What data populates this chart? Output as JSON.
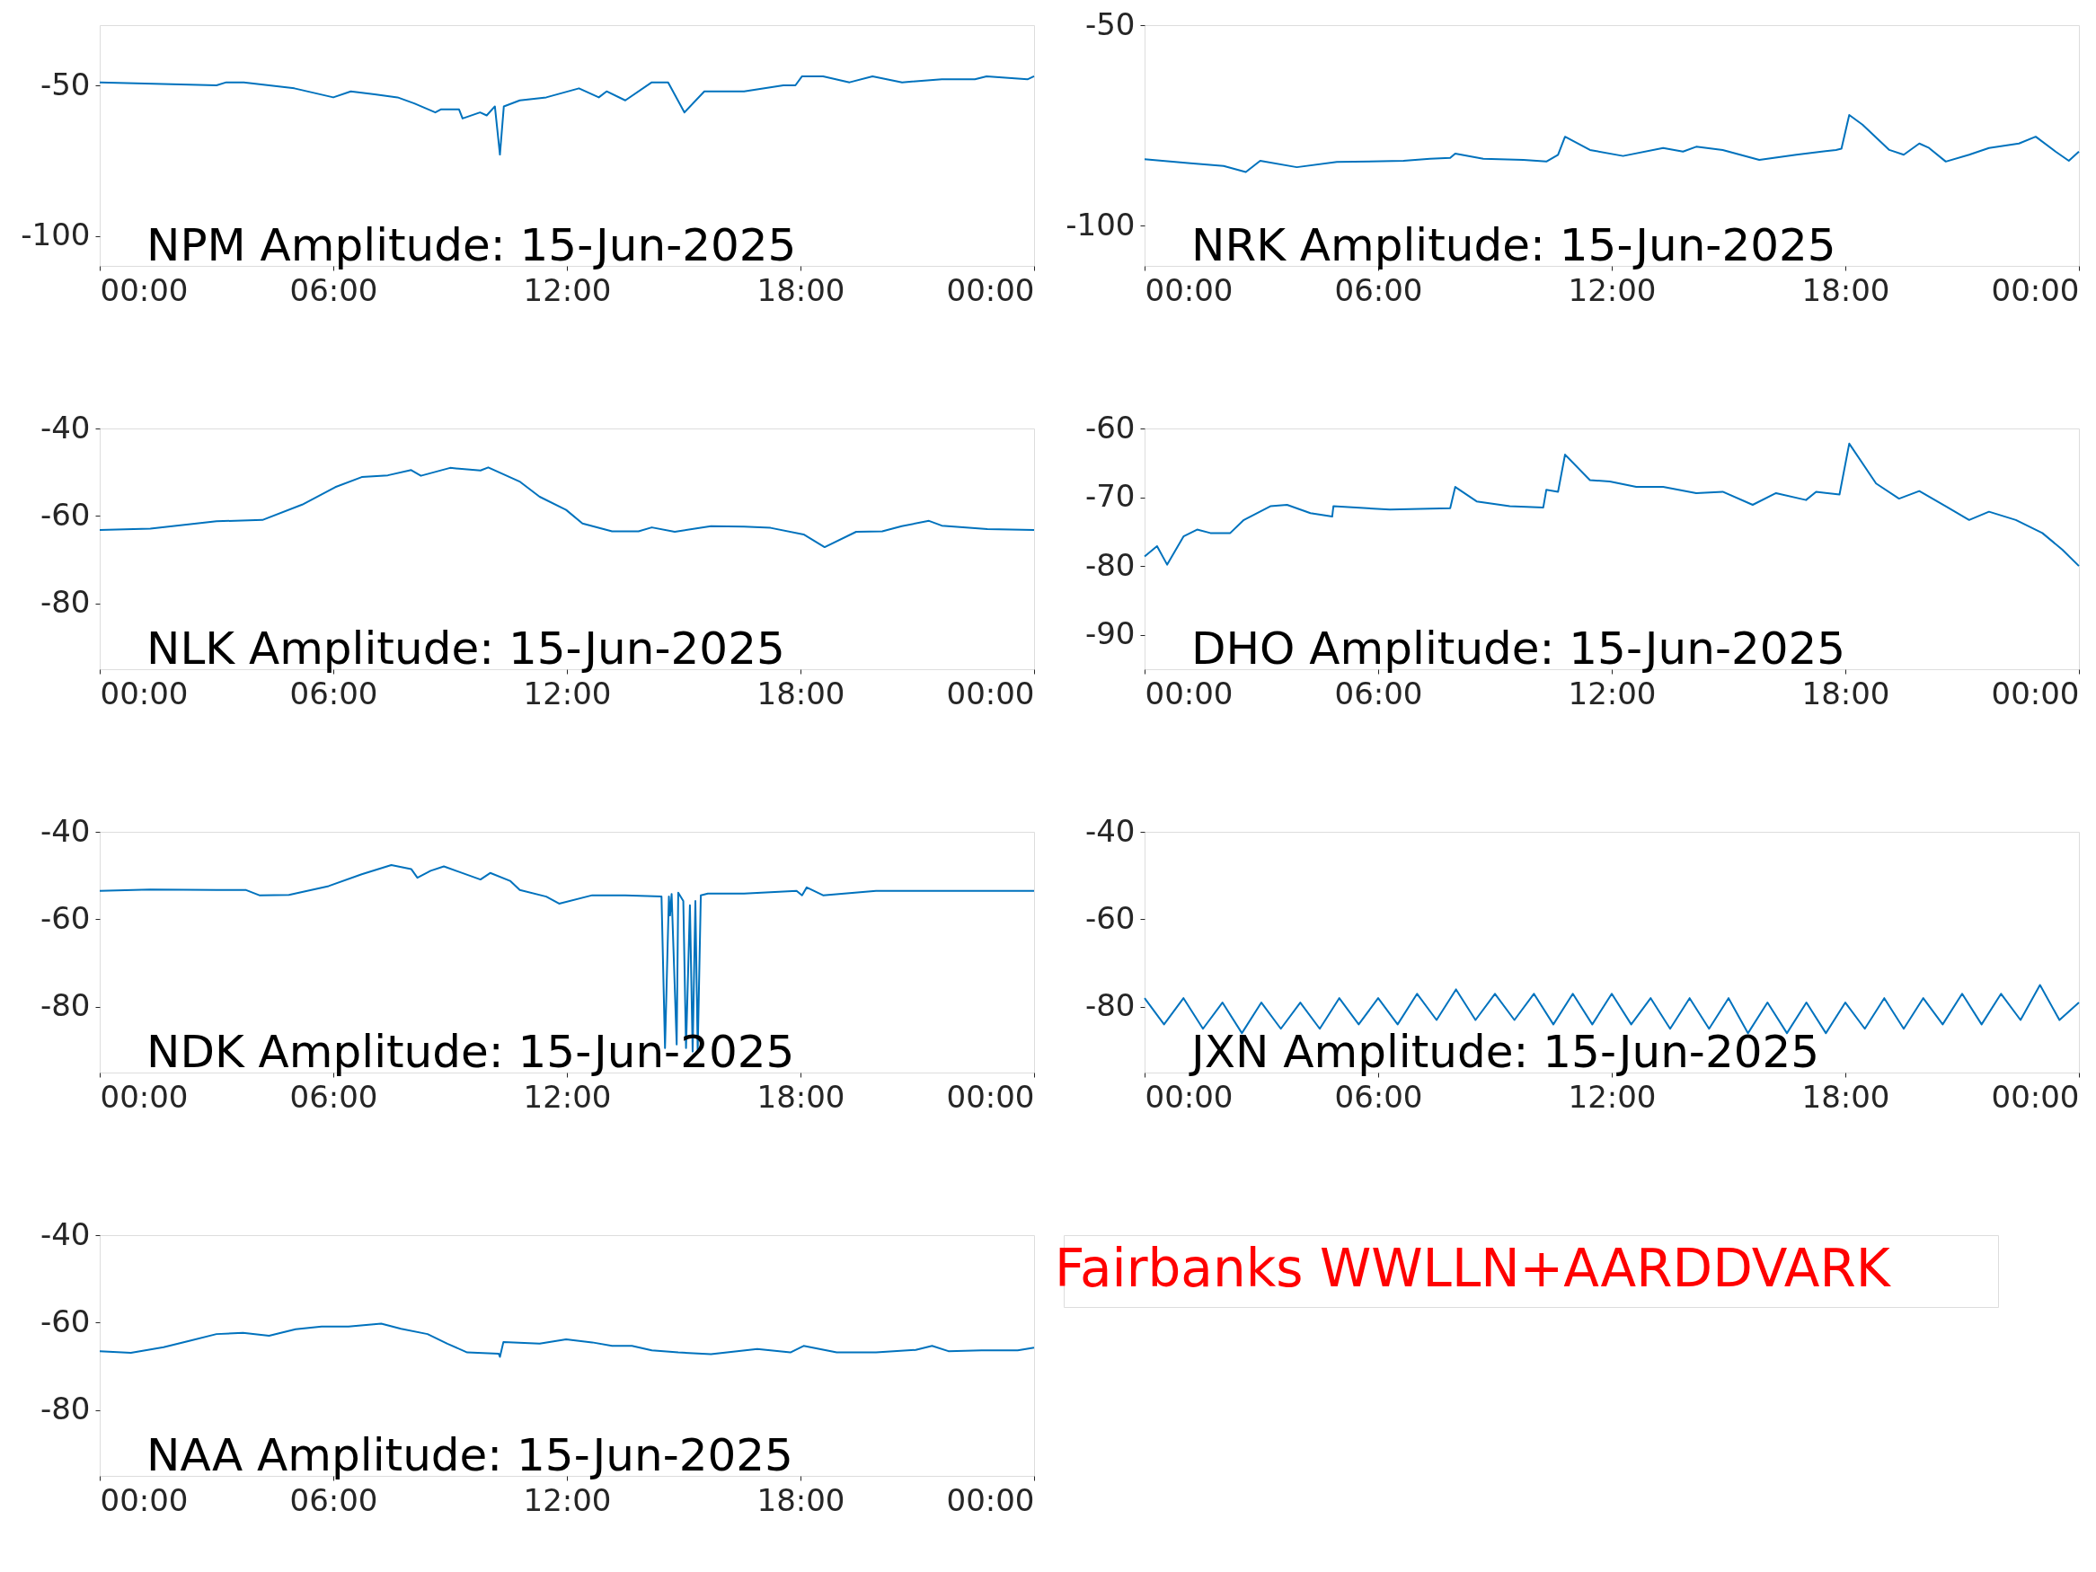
{
  "chart_data": [
    {
      "type": "line",
      "title": "NPM Amplitude: 15-Jun-2025",
      "xlim": [
        0,
        24
      ],
      "xticks": [
        {
          "value": 0,
          "label": "00:00"
        },
        {
          "value": 6,
          "label": "06:00"
        },
        {
          "value": 12,
          "label": "12:00"
        },
        {
          "value": 18,
          "label": "18:00"
        },
        {
          "value": 24,
          "label": "00:00"
        }
      ],
      "ylim": [
        -110,
        -30
      ],
      "yticks": [
        -100,
        -50
      ],
      "grid": false,
      "series": [
        {
          "color": "#0072bd",
          "x": [
            0,
            3.0,
            3.25,
            3.7,
            4.35,
            5.0,
            6.0,
            6.45,
            7.06,
            7.65,
            8.08,
            8.62,
            8.76,
            9.23,
            9.32,
            9.77,
            9.94,
            10.15,
            10.28,
            10.38,
            10.79,
            11.47,
            12.31,
            12.82,
            13.02,
            13.5,
            14.18,
            14.6,
            15.02,
            15.53,
            16.55,
            17.56,
            17.87,
            18.04,
            18.58,
            19.26,
            19.85,
            20.61,
            21.63,
            22.48,
            22.78,
            23.83,
            24
          ],
          "values": [
            -49,
            -50,
            -49,
            -49,
            -50,
            -51,
            -54,
            -52,
            -53,
            -54,
            -56,
            -59,
            -58,
            -58,
            -61,
            -59,
            -60,
            -57,
            -73,
            -57,
            -55,
            -54,
            -51,
            -54,
            -52,
            -55,
            -49,
            -49,
            -59,
            -52,
            -52,
            -50,
            -50,
            -47,
            -47,
            -49,
            -47,
            -49,
            -48,
            -48,
            -47,
            -48,
            -47
          ]
        }
      ]
    },
    {
      "type": "line",
      "title": "NRK Amplitude: 15-Jun-2025",
      "xlim": [
        0,
        24
      ],
      "xticks": [
        {
          "value": 0,
          "label": "00:00"
        },
        {
          "value": 6,
          "label": "06:00"
        },
        {
          "value": 12,
          "label": "12:00"
        },
        {
          "value": 18,
          "label": "18:00"
        },
        {
          "value": 24,
          "label": "00:00"
        }
      ],
      "ylim": [
        -110,
        -50
      ],
      "yticks": [
        -100,
        -50
      ],
      "grid": false,
      "series": [
        {
          "color": "#0072bd",
          "x": [
            0,
            1.18,
            2.03,
            2.6,
            2.97,
            3.91,
            4.94,
            6.65,
            7.33,
            7.85,
            7.98,
            8.7,
            9.73,
            10.32,
            10.62,
            10.8,
            11.44,
            12.29,
            13.32,
            13.83,
            14.17,
            14.85,
            15.79,
            16.74,
            17.76,
            17.9,
            18.1,
            18.44,
            19.13,
            19.5,
            19.9,
            20.15,
            20.58,
            21.18,
            21.69,
            22.46,
            22.89,
            23.4,
            23.74,
            24
          ],
          "values": [
            -83.4,
            -84.4,
            -85.1,
            -86.6,
            -83.8,
            -85.4,
            -84.1,
            -83.8,
            -83.3,
            -83.1,
            -82.0,
            -83.3,
            -83.6,
            -84.0,
            -82.3,
            -77.8,
            -81.1,
            -82.6,
            -80.6,
            -81.5,
            -80.3,
            -81.1,
            -83.6,
            -82.3,
            -81.1,
            -80.8,
            -72.4,
            -74.8,
            -81.1,
            -82.3,
            -79.5,
            -80.6,
            -84.0,
            -82.3,
            -80.6,
            -79.5,
            -77.8,
            -81.5,
            -83.8,
            -81.5
          ]
        }
      ]
    },
    {
      "type": "line",
      "title": "NLK Amplitude: 15-Jun-2025",
      "xlim": [
        0,
        24
      ],
      "xticks": [
        {
          "value": 0,
          "label": "00:00"
        },
        {
          "value": 6,
          "label": "06:00"
        },
        {
          "value": 12,
          "label": "12:00"
        },
        {
          "value": 18,
          "label": "18:00"
        },
        {
          "value": 24,
          "label": "00:00"
        }
      ],
      "ylim": [
        -95,
        -40
      ],
      "yticks": [
        -80,
        -60,
        -40
      ],
      "grid": false,
      "series": [
        {
          "color": "#0072bd",
          "x": [
            0,
            1.3,
            3.0,
            4.18,
            5.2,
            6.05,
            6.73,
            7.4,
            8.0,
            8.25,
            9.0,
            9.78,
            9.98,
            10.8,
            11.3,
            11.98,
            12.4,
            13.16,
            13.84,
            14.18,
            14.77,
            15.7,
            16.55,
            17.23,
            18.08,
            18.62,
            19.43,
            20.1,
            20.6,
            21.3,
            21.63,
            22.8,
            24
          ],
          "values": [
            -63.2,
            -62.9,
            -61.2,
            -60.9,
            -57.4,
            -53.4,
            -51.1,
            -50.7,
            -49.5,
            -50.8,
            -49.0,
            -49.6,
            -48.9,
            -52.2,
            -55.6,
            -58.6,
            -61.7,
            -63.5,
            -63.5,
            -62.6,
            -63.6,
            -62.3,
            -62.4,
            -62.7,
            -64.2,
            -67.1,
            -63.6,
            -63.5,
            -62.3,
            -61.1,
            -62.2,
            -63.0,
            -63.2
          ]
        }
      ]
    },
    {
      "type": "line",
      "title": "DHO Amplitude: 15-Jun-2025",
      "xlim": [
        0,
        24
      ],
      "xticks": [
        {
          "value": 0,
          "label": "00:00"
        },
        {
          "value": 6,
          "label": "06:00"
        },
        {
          "value": 12,
          "label": "12:00"
        },
        {
          "value": 18,
          "label": "18:00"
        },
        {
          "value": 24,
          "label": "00:00"
        }
      ],
      "ylim": [
        -95,
        -60
      ],
      "yticks": [
        -90,
        -80,
        -70,
        -60
      ],
      "grid": false,
      "series": [
        {
          "color": "#0072bd",
          "x": [
            0,
            0.32,
            0.58,
            1.0,
            1.35,
            1.69,
            2.2,
            2.55,
            3.23,
            3.66,
            4.26,
            4.82,
            4.85,
            6.3,
            7.85,
            7.98,
            8.53,
            9.38,
            10.24,
            10.32,
            10.62,
            10.8,
            11.44,
            11.95,
            12.63,
            13.32,
            14.17,
            14.85,
            15.62,
            16.22,
            16.99,
            17.25,
            17.85,
            18.1,
            18.79,
            19.38,
            19.9,
            20.58,
            21.18,
            21.69,
            22.38,
            23.06,
            23.57,
            24
          ],
          "values": [
            -78.6,
            -77.1,
            -79.8,
            -75.7,
            -74.7,
            -75.2,
            -75.2,
            -73.3,
            -71.3,
            -71.1,
            -72.3,
            -72.8,
            -71.3,
            -71.8,
            -71.6,
            -68.5,
            -70.6,
            -71.3,
            -71.5,
            -68.9,
            -69.2,
            -63.8,
            -67.5,
            -67.7,
            -68.5,
            -68.5,
            -69.4,
            -69.2,
            -71.1,
            -69.4,
            -70.4,
            -69.2,
            -69.6,
            -62.2,
            -68.0,
            -70.2,
            -69.1,
            -71.3,
            -73.3,
            -72.1,
            -73.3,
            -75.2,
            -77.6,
            -80.0
          ]
        }
      ]
    },
    {
      "type": "line",
      "title": "NDK Amplitude: 15-Jun-2025",
      "xlim": [
        0,
        24
      ],
      "xticks": [
        {
          "value": 0,
          "label": "00:00"
        },
        {
          "value": 6,
          "label": "06:00"
        },
        {
          "value": 12,
          "label": "12:00"
        },
        {
          "value": 18,
          "label": "18:00"
        },
        {
          "value": 24,
          "label": "00:00"
        }
      ],
      "ylim": [
        -95,
        -40
      ],
      "yticks": [
        -80,
        -60,
        -40
      ],
      "grid": false,
      "series": [
        {
          "color": "#0072bd",
          "x": [
            0,
            1.3,
            3.0,
            3.76,
            4.1,
            4.86,
            5.88,
            6.73,
            7.49,
            8.0,
            8.16,
            8.5,
            8.84,
            9.78,
            10.03,
            10.54,
            10.79,
            11.47,
            11.8,
            12.65,
            13.5,
            14.43,
            14.52,
            14.62,
            14.65,
            14.69,
            14.82,
            14.86,
            14.99,
            15.06,
            15.16,
            15.23,
            15.3,
            15.36,
            15.44,
            15.62,
            16.55,
            17.9,
            18.04,
            18.16,
            18.58,
            19.94,
            21.64,
            24
          ],
          "values": [
            -53.5,
            -53.2,
            -53.3,
            -53.3,
            -54.5,
            -54.4,
            -52.4,
            -49.7,
            -47.6,
            -48.5,
            -50.5,
            -48.9,
            -47.9,
            -50.9,
            -49.4,
            -51.2,
            -53.3,
            -54.8,
            -56.4,
            -54.5,
            -54.5,
            -54.8,
            -89.4,
            -54.8,
            -59.1,
            -54.2,
            -88.6,
            -53.9,
            -55.8,
            -89.4,
            -56.8,
            -90.2,
            -55.8,
            -90.2,
            -54.5,
            -54.1,
            -54.1,
            -53.5,
            -54.5,
            -52.7,
            -54.5,
            -53.5,
            -53.5,
            -53.5
          ]
        }
      ]
    },
    {
      "type": "line",
      "title": "JXN Amplitude: 15-Jun-2025",
      "xlim": [
        0,
        24
      ],
      "xticks": [
        {
          "value": 0,
          "label": "00:00"
        },
        {
          "value": 6,
          "label": "06:00"
        },
        {
          "value": 12,
          "label": "12:00"
        },
        {
          "value": 18,
          "label": "18:00"
        },
        {
          "value": 24,
          "label": "00:00"
        }
      ],
      "ylim": [
        -95,
        -40
      ],
      "yticks": [
        -80,
        -60,
        -40
      ],
      "grid": false,
      "series": [
        {
          "color": "#0072bd",
          "x": [
            0,
            0.5,
            1,
            1.5,
            2,
            2.5,
            3,
            3.5,
            4,
            4.5,
            5,
            5.5,
            6,
            6.5,
            7,
            7.5,
            8,
            8.5,
            9,
            9.5,
            10,
            10.5,
            11,
            11.5,
            12,
            12.5,
            13,
            13.5,
            14,
            14.5,
            15,
            15.5,
            16,
            16.5,
            17,
            17.5,
            18,
            18.5,
            19,
            19.5,
            20,
            20.5,
            21,
            21.5,
            22,
            22.5,
            23,
            23.5,
            24
          ],
          "values": [
            -78,
            -84,
            -78,
            -85,
            -79,
            -86,
            -79,
            -85,
            -79,
            -85,
            -78,
            -84,
            -78,
            -84,
            -77,
            -83,
            -76,
            -83,
            -77,
            -83,
            -77,
            -84,
            -77,
            -84,
            -77,
            -84,
            -78,
            -85,
            -78,
            -85,
            -78,
            -86,
            -79,
            -86,
            -79,
            -86,
            -79,
            -85,
            -78,
            -85,
            -78,
            -84,
            -77,
            -84,
            -77,
            -83,
            -75,
            -83,
            -79
          ]
        }
      ]
    },
    {
      "type": "line",
      "title": "NAA Amplitude: 15-Jun-2025",
      "xlim": [
        0,
        24
      ],
      "xticks": [
        {
          "value": 0,
          "label": "00:00"
        },
        {
          "value": 6,
          "label": "06:00"
        },
        {
          "value": 12,
          "label": "12:00"
        },
        {
          "value": 18,
          "label": "18:00"
        },
        {
          "value": 24,
          "label": "00:00"
        }
      ],
      "ylim": [
        -95,
        -40
      ],
      "yticks": [
        -80,
        -60,
        -40
      ],
      "grid": false,
      "series": [
        {
          "color": "#0072bd",
          "x": [
            0,
            0.8,
            1.64,
            2.32,
            3.0,
            3.68,
            4.35,
            5.03,
            5.7,
            6.39,
            7.23,
            7.74,
            8.42,
            8.93,
            9.44,
            10.25,
            10.28,
            10.37,
            11.3,
            11.98,
            12.65,
            13.16,
            13.67,
            14.18,
            14.86,
            15.7,
            16.89,
            17.74,
            18.08,
            18.93,
            19.94,
            20.96,
            21.38,
            21.8,
            22.65,
            23.58,
            24
          ],
          "values": [
            -66.5,
            -66.9,
            -65.6,
            -64.1,
            -62.6,
            -62.3,
            -63.0,
            -61.5,
            -60.9,
            -60.9,
            -60.2,
            -61.4,
            -62.6,
            -64.8,
            -66.8,
            -67.1,
            -67.8,
            -64.4,
            -64.8,
            -63.8,
            -64.5,
            -65.3,
            -65.3,
            -66.3,
            -66.8,
            -67.2,
            -66.0,
            -66.8,
            -65.3,
            -66.8,
            -66.8,
            -66.2,
            -65.3,
            -66.5,
            -66.3,
            -66.3,
            -65.7
          ]
        }
      ]
    },
    {
      "type": "other",
      "annotations": [
        "Fairbanks WWLLN+AARDDVARK"
      ]
    }
  ]
}
